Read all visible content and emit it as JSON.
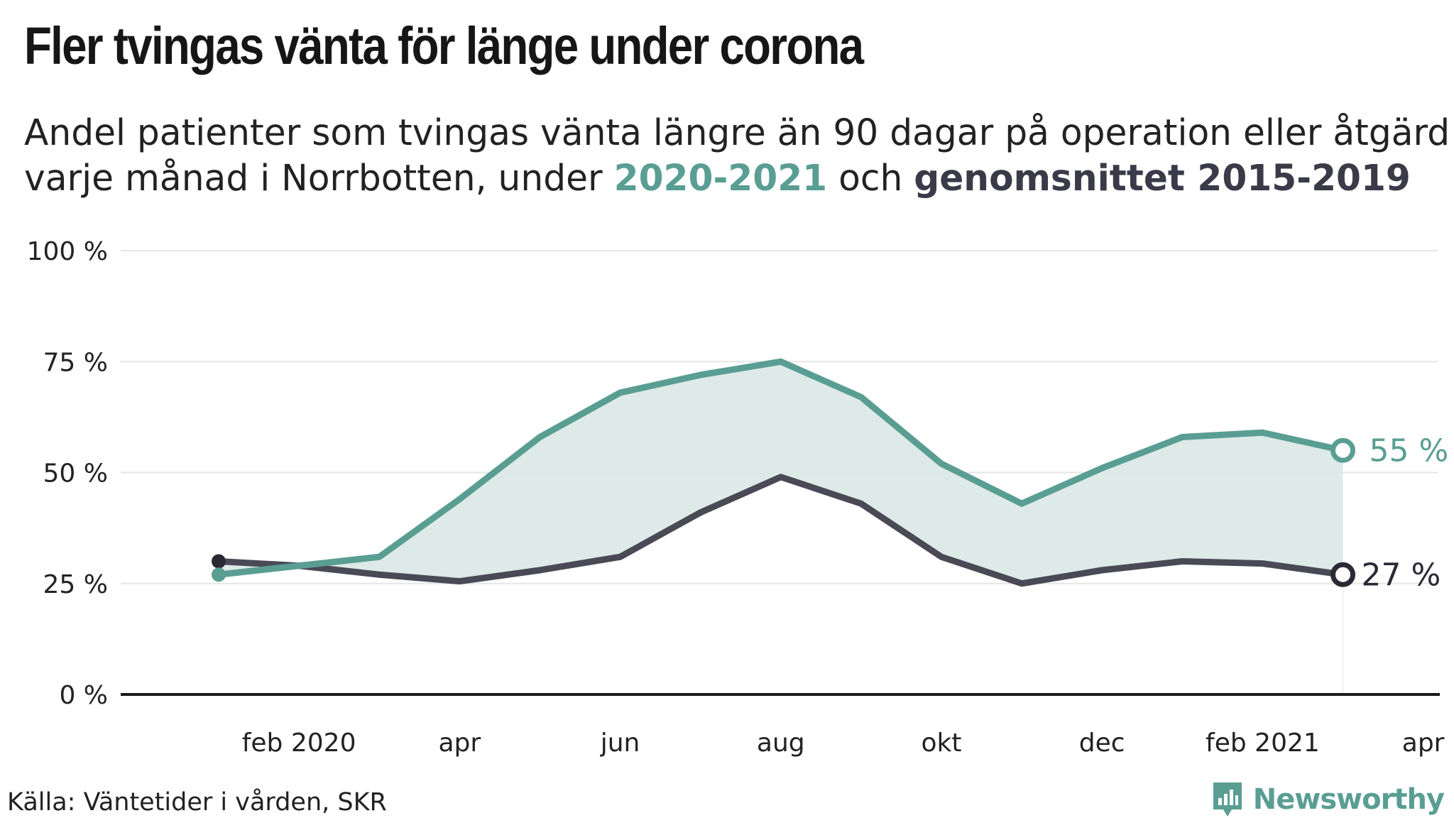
{
  "title": "Fler tvingas vänta för länge under corona",
  "subtitle": {
    "part1": "Andel patienter som tvingas vänta längre än 90 dagar på operation eller åtgärd",
    "part2": "varje månad i Norrbotten, under ",
    "highlight_current": "2020-2021",
    "part3": " och ",
    "highlight_average": "genomsnittet 2015-2019"
  },
  "source": "Källa: Väntetider i vården, SKR",
  "brand": {
    "name": "Newsworthy",
    "icon": "newsworthy-logo-icon"
  },
  "colors": {
    "current": "#5a9e93",
    "average": "#4a4a57",
    "average_dot": "#2a2a35",
    "fill": "#dbe9e6",
    "grid": "#e6e6e6",
    "axis": "#1a1a1a"
  },
  "chart_data": {
    "type": "line",
    "title": "Fler tvingas vänta för länge under corona",
    "xlabel": "",
    "ylabel": "",
    "ylim": [
      0,
      100
    ],
    "y_ticks": [
      0,
      25,
      50,
      75,
      100
    ],
    "y_tick_labels": [
      "0 %",
      "25 %",
      "50 %",
      "75 %",
      "100 %"
    ],
    "x_tick_labels": [
      "feb 2020",
      "apr",
      "jun",
      "aug",
      "okt",
      "dec",
      "feb 2021",
      "apr"
    ],
    "x_tick_months": [
      "2020-02",
      "2020-04",
      "2020-06",
      "2020-08",
      "2020-10",
      "2020-12",
      "2021-02",
      "2021-04"
    ],
    "x": [
      "2020-01",
      "2020-02",
      "2020-03",
      "2020-04",
      "2020-05",
      "2020-06",
      "2020-07",
      "2020-08",
      "2020-09",
      "2020-10",
      "2020-11",
      "2020-12",
      "2021-01",
      "2021-02",
      "2021-03"
    ],
    "x_range": [
      "2019-12",
      "2021-04"
    ],
    "grid": true,
    "area_between_series": true,
    "series": [
      {
        "name": "2020-2021",
        "values": [
          27,
          29,
          31,
          44,
          58,
          68,
          72,
          75,
          67,
          52,
          43,
          51,
          58,
          59,
          55
        ],
        "end_label": "55 %"
      },
      {
        "name": "genomsnittet 2015-2019",
        "values": [
          30,
          29,
          27,
          25.5,
          28,
          31,
          41,
          49,
          43,
          31,
          25,
          28,
          30,
          29.5,
          27
        ],
        "end_label": "27 %"
      }
    ]
  }
}
